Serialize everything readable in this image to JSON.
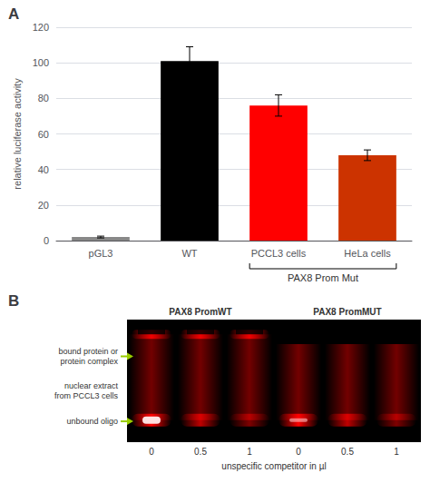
{
  "chart_data": [
    {
      "type": "bar",
      "title": "A",
      "categories": [
        "pGL3",
        "WT",
        "PCCL3 cells",
        "HeLa cells"
      ],
      "values": [
        2,
        101,
        76,
        48
      ],
      "errors": [
        0.5,
        8,
        6,
        3
      ],
      "colors": [
        "#888888",
        "#000000",
        "#ff0000",
        "#cc3300"
      ],
      "ylabel": "relative luciferase activity",
      "ylim": [
        0,
        120
      ],
      "yticks": [
        0,
        20,
        40,
        60,
        80,
        100,
        120
      ],
      "grid": true,
      "annotations": [
        {
          "text": "PAX8 Prom Mut",
          "categories": [
            "PCCL3 cells",
            "HeLa cells"
          ]
        }
      ]
    },
    {
      "type": "gel",
      "title": "B",
      "groups": [
        "PAX8 PromWT",
        "PAX8 PromMUT"
      ],
      "categories": [
        "0",
        "0.5",
        "1",
        "0",
        "0.5",
        "1"
      ],
      "xlabel": "unspecific competitor in µl",
      "annotations": [
        {
          "text": "bound protein or\nprotein complex",
          "marker": "arrow",
          "color": "#99cc00"
        },
        {
          "text": "nuclear extract\nfrom PCCL3 cells"
        },
        {
          "text": "unbound oligo",
          "marker": "arrow",
          "color": "#99cc00"
        }
      ]
    }
  ]
}
